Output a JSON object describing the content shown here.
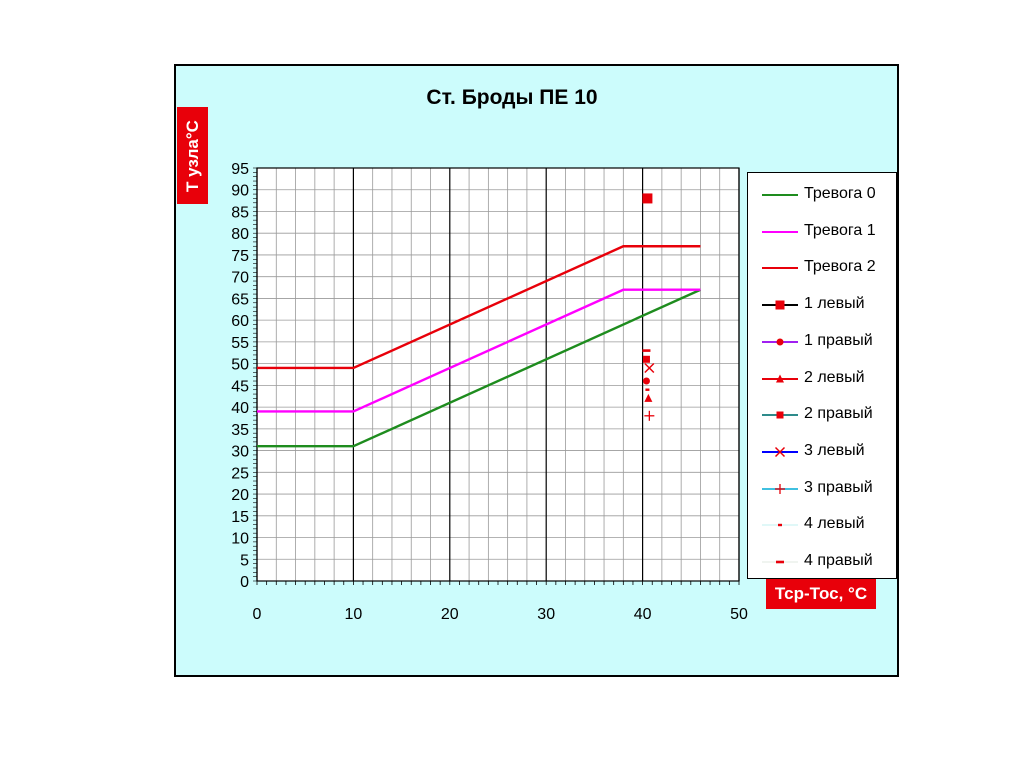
{
  "chart_data": {
    "type": "line",
    "title": "Ст. Броды ПЕ 10",
    "xlabel": "Тср-Тос, °С",
    "ylabel": "Т узла°С",
    "xlim": [
      0,
      50
    ],
    "ylim": [
      0,
      95
    ],
    "x_ticks": [
      "0",
      "10",
      "20",
      "30",
      "40",
      "50"
    ],
    "y_ticks": [
      "0",
      "5",
      "10",
      "15",
      "20",
      "25",
      "30",
      "35",
      "40",
      "45",
      "50",
      "55",
      "60",
      "65",
      "70",
      "75",
      "80",
      "85",
      "90",
      "95"
    ],
    "grid": true,
    "legend_position": "right",
    "series": [
      {
        "name": "Тревога 0",
        "kind": "line",
        "color": "#1e8c1e",
        "points": [
          [
            0,
            31
          ],
          [
            10,
            31
          ],
          [
            46,
            67
          ]
        ]
      },
      {
        "name": "Тревога 1",
        "kind": "line",
        "color": "#ff00ff",
        "points": [
          [
            0,
            39
          ],
          [
            10,
            39
          ],
          [
            38,
            67
          ],
          [
            46,
            67
          ]
        ]
      },
      {
        "name": "Тревога 2",
        "kind": "line",
        "color": "#e8000a",
        "points": [
          [
            0,
            49
          ],
          [
            10,
            49
          ],
          [
            38,
            77
          ],
          [
            46,
            77
          ]
        ]
      },
      {
        "name": "1 левый",
        "kind": "marker",
        "marker": "square-large",
        "color": "#e8000a",
        "line_color": "#000000",
        "points": [
          [
            40.5,
            88
          ]
        ]
      },
      {
        "name": "1 правый",
        "kind": "marker",
        "marker": "circle",
        "color": "#e8000a",
        "line_color": "#a020f0",
        "points": [
          [
            40.4,
            46
          ]
        ]
      },
      {
        "name": "2 левый",
        "kind": "marker",
        "marker": "triangle",
        "color": "#e8000a",
        "line_color": "#e8000a",
        "points": [
          [
            40.6,
            42
          ]
        ]
      },
      {
        "name": "2 правый",
        "kind": "marker",
        "marker": "square",
        "color": "#e8000a",
        "line_color": "#2e8b8b",
        "points": [
          [
            40.4,
            51
          ]
        ]
      },
      {
        "name": "3 левый",
        "kind": "marker",
        "marker": "x",
        "color": "#e8000a",
        "line_color": "#0000ff",
        "points": [
          [
            40.7,
            49
          ]
        ]
      },
      {
        "name": "3 правый",
        "kind": "marker",
        "marker": "plus",
        "color": "#e8000a",
        "line_color": "#40c0e0",
        "points": [
          [
            40.7,
            38
          ]
        ]
      },
      {
        "name": "4 левый",
        "kind": "marker",
        "marker": "dash-small",
        "color": "#e8000a",
        "line_color": "#e0f8f8",
        "points": [
          [
            40.5,
            44
          ]
        ]
      },
      {
        "name": "4 правый",
        "kind": "marker",
        "marker": "dash",
        "color": "#e8000a",
        "line_color": "#f0f4f0",
        "points": [
          [
            40.4,
            53
          ]
        ]
      }
    ]
  }
}
